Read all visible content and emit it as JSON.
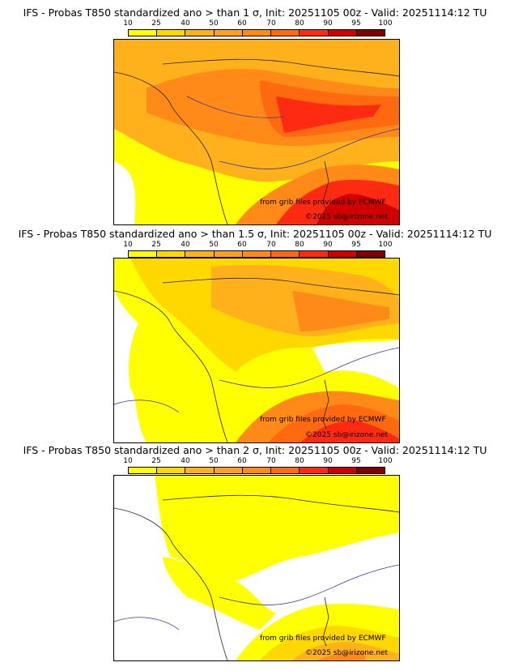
{
  "colorbar": {
    "ticks": [
      "10",
      "25",
      "40",
      "50",
      "60",
      "70",
      "80",
      "90",
      "95",
      "100"
    ],
    "colors": [
      "#ffff00",
      "#ffd800",
      "#ffb11c",
      "#ffa020",
      "#ff8a18",
      "#ff6a10",
      "#ff2a12",
      "#d10000",
      "#800000"
    ]
  },
  "panels": [
    {
      "title": "IFS - Probas T850  standardized ano > than 1 σ, Init: 20251105 00z - Valid: 20251114:12 TU",
      "sigma": "1",
      "credit_line1": "from grib files provided by ECMWF",
      "credit_line2": "©2025 sb@irizone.net"
    },
    {
      "title": "IFS - Probas T850  standardized ano > than 1.5 σ, Init: 20251105 00z - Valid: 20251114:12 TU",
      "sigma": "1.5",
      "credit_line1": "from grib files provided by ECMWF",
      "credit_line2": "©2025 sb@irizone.net"
    },
    {
      "title": "IFS - Probas T850  standardized ano > than 2 σ, Init: 20251105 00z - Valid: 20251114:12 TU",
      "sigma": "2",
      "credit_line1": "from grib files provided by ECMWF",
      "credit_line2": "©2025 sb@irizone.net"
    }
  ]
}
